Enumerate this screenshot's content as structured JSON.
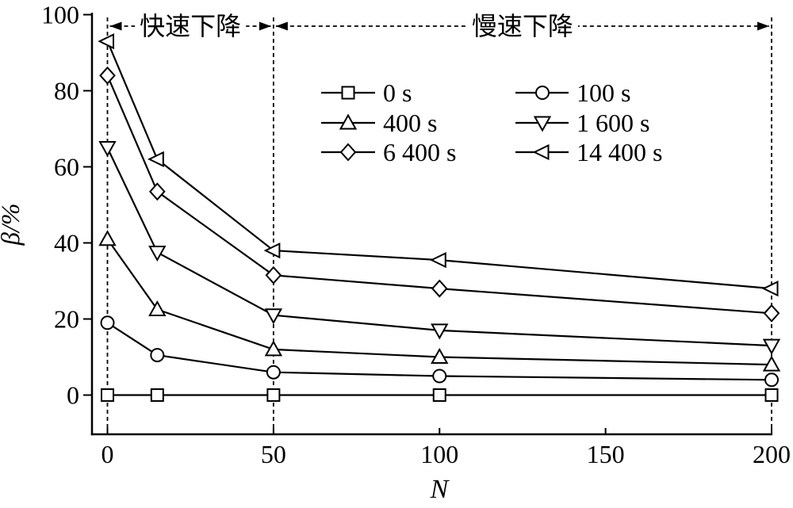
{
  "figure": {
    "colors": {
      "foreground": "#000000",
      "background": "#ffffff"
    }
  },
  "chart_data": {
    "type": "line",
    "title": "",
    "xlabel": "N",
    "ylabel": "β/%",
    "x": [
      0,
      15,
      50,
      100,
      200
    ],
    "x_ticks": [
      0,
      50,
      100,
      150,
      200
    ],
    "y_ticks": [
      0,
      20,
      40,
      60,
      80,
      100
    ],
    "xlim": [
      0,
      200
    ],
    "ylim": [
      0,
      100
    ],
    "grid": false,
    "legend_position": "upper center, two columns, no frame",
    "series": [
      {
        "name": "0 s",
        "marker": "square",
        "values": [
          0,
          0,
          0,
          0,
          0
        ]
      },
      {
        "name": "100 s",
        "marker": "circle",
        "values": [
          19,
          10.5,
          6,
          5,
          4
        ]
      },
      {
        "name": "400 s",
        "marker": "triangle-up",
        "values": [
          41,
          22.5,
          12,
          10,
          8
        ]
      },
      {
        "name": "1 600 s",
        "marker": "triangle-down",
        "values": [
          65,
          37.5,
          21,
          17,
          13
        ]
      },
      {
        "name": "6 400 s",
        "marker": "diamond",
        "values": [
          84,
          53.5,
          31.5,
          28,
          21.5
        ]
      },
      {
        "name": "14 400 s",
        "marker": "triangle-left",
        "values": [
          93,
          62,
          38,
          35.5,
          28
        ]
      }
    ],
    "region_annotations": [
      {
        "label": "快速下降",
        "x_from": 0,
        "x_to": 50
      },
      {
        "label": "慢速下降",
        "x_from": 50,
        "x_to": 200
      }
    ],
    "dashed_vlines_x": [
      0,
      50,
      200
    ]
  }
}
